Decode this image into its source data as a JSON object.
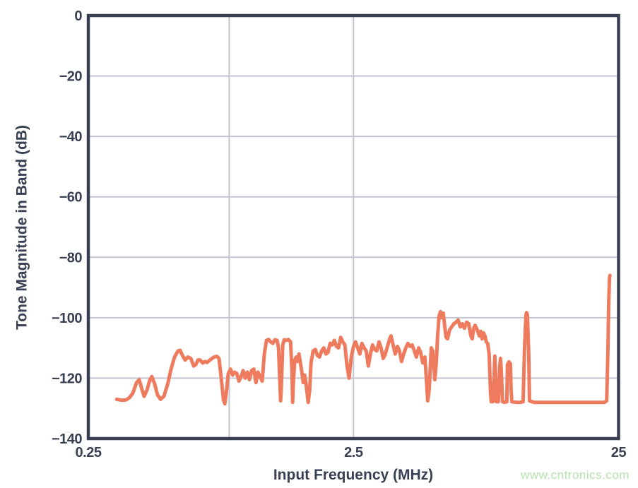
{
  "chart_data": {
    "type": "line",
    "title": "",
    "xlabel": "Input Frequency (MHz)",
    "ylabel": "Tone Magnitude in Band (dB)",
    "xscale": "log",
    "xlim": [
      0.25,
      25
    ],
    "ylim": [
      -140,
      0
    ],
    "grid": true,
    "legend": "none",
    "xticks": [
      {
        "value": 0.25,
        "label": "0.25"
      },
      {
        "value": 2.5,
        "label": "2.5"
      },
      {
        "value": 25,
        "label": "25"
      }
    ],
    "yticks": [
      {
        "value": 0,
        "label": "0"
      },
      {
        "value": -20,
        "label": "−20"
      },
      {
        "value": -40,
        "label": "−40"
      },
      {
        "value": -60,
        "label": "−60"
      },
      {
        "value": -80,
        "label": "−80"
      },
      {
        "value": -100,
        "label": "−100"
      },
      {
        "value": -120,
        "label": "−120"
      },
      {
        "value": -140,
        "label": "−140"
      }
    ],
    "x_gridlines": [
      0.85,
      2.5
    ],
    "y_gridlines": [
      -20,
      -40,
      -60,
      -80,
      -100,
      -120
    ],
    "axis_color": "#3a4054",
    "grid_color": "#c2c5d1",
    "text_color": "#3a4054",
    "series": [
      {
        "color": "#ee7b5e",
        "points": [
          [
            0.32,
            -127
          ],
          [
            0.334,
            -127.3
          ],
          [
            0.347,
            -127.2
          ],
          [
            0.357,
            -126.5
          ],
          [
            0.368,
            -125
          ],
          [
            0.38,
            -121.5
          ],
          [
            0.389,
            -120.5
          ],
          [
            0.396,
            -123
          ],
          [
            0.406,
            -126
          ],
          [
            0.416,
            -124
          ],
          [
            0.427,
            -120.5
          ],
          [
            0.434,
            -119.5
          ],
          [
            0.445,
            -122
          ],
          [
            0.456,
            -125.5
          ],
          [
            0.468,
            -127
          ],
          [
            0.482,
            -126
          ],
          [
            0.498,
            -122
          ],
          [
            0.513,
            -117
          ],
          [
            0.529,
            -113
          ],
          [
            0.545,
            -111
          ],
          [
            0.555,
            -110.8
          ],
          [
            0.566,
            -112.5
          ],
          [
            0.58,
            -114
          ],
          [
            0.594,
            -113
          ],
          [
            0.609,
            -113.5
          ],
          [
            0.624,
            -116
          ],
          [
            0.636,
            -115.5
          ],
          [
            0.648,
            -114
          ],
          [
            0.66,
            -114
          ],
          [
            0.676,
            -115
          ],
          [
            0.689,
            -114.5
          ],
          [
            0.701,
            -114.8
          ],
          [
            0.719,
            -114
          ],
          [
            0.732,
            -113.5
          ],
          [
            0.746,
            -113
          ],
          [
            0.764,
            -112.8
          ],
          [
            0.778,
            -113.5
          ],
          [
            0.793,
            -120
          ],
          [
            0.808,
            -127
          ],
          [
            0.818,
            -128.5
          ],
          [
            0.828,
            -125
          ],
          [
            0.843,
            -118.5
          ],
          [
            0.859,
            -117
          ],
          [
            0.875,
            -119
          ],
          [
            0.891,
            -118
          ],
          [
            0.908,
            -118.5
          ],
          [
            0.925,
            -121
          ],
          [
            0.942,
            -119.5
          ],
          [
            0.959,
            -117.5
          ],
          [
            0.977,
            -120
          ],
          [
            0.995,
            -118
          ],
          [
            1.013,
            -120.5
          ],
          [
            1.033,
            -117.5
          ],
          [
            1.052,
            -117
          ],
          [
            1.072,
            -121.5
          ],
          [
            1.091,
            -118
          ],
          [
            1.112,
            -119.5
          ],
          [
            1.132,
            -121
          ],
          [
            1.153,
            -112
          ],
          [
            1.175,
            -107.5
          ],
          [
            1.197,
            -107.2
          ],
          [
            1.219,
            -108
          ],
          [
            1.242,
            -108.5
          ],
          [
            1.264,
            -107.3
          ],
          [
            1.288,
            -107.5
          ],
          [
            1.304,
            -110
          ],
          [
            1.32,
            -122
          ],
          [
            1.328,
            -127.5
          ],
          [
            1.337,
            -122
          ],
          [
            1.353,
            -109
          ],
          [
            1.37,
            -107.3
          ],
          [
            1.396,
            -107.5
          ],
          [
            1.421,
            -107.2
          ],
          [
            1.448,
            -108
          ],
          [
            1.466,
            -118
          ],
          [
            1.474,
            -128
          ],
          [
            1.483,
            -122
          ],
          [
            1.502,
            -114
          ],
          [
            1.521,
            -113
          ],
          [
            1.539,
            -114.5
          ],
          [
            1.558,
            -112
          ],
          [
            1.577,
            -115
          ],
          [
            1.597,
            -118
          ],
          [
            1.617,
            -121.5
          ],
          [
            1.637,
            -119
          ],
          [
            1.657,
            -122
          ],
          [
            1.677,
            -126
          ],
          [
            1.688,
            -128
          ],
          [
            1.709,
            -124
          ],
          [
            1.73,
            -115
          ],
          [
            1.762,
            -111
          ],
          [
            1.795,
            -110.5
          ],
          [
            1.828,
            -112.5
          ],
          [
            1.862,
            -113
          ],
          [
            1.897,
            -111
          ],
          [
            1.932,
            -110
          ],
          [
            1.968,
            -112
          ],
          [
            2.004,
            -111.5
          ],
          [
            2.041,
            -108.5
          ],
          [
            2.079,
            -109
          ],
          [
            2.118,
            -107.5
          ],
          [
            2.157,
            -109.5
          ],
          [
            2.197,
            -110
          ],
          [
            2.238,
            -106.5
          ],
          [
            2.279,
            -108
          ],
          [
            2.321,
            -109
          ],
          [
            2.365,
            -116
          ],
          [
            2.408,
            -120
          ],
          [
            2.453,
            -113
          ],
          [
            2.5,
            -109.5
          ],
          [
            2.546,
            -108
          ],
          [
            2.594,
            -110
          ],
          [
            2.642,
            -112
          ],
          [
            2.691,
            -108.5
          ],
          [
            2.742,
            -110
          ],
          [
            2.793,
            -111
          ],
          [
            2.845,
            -116
          ],
          [
            2.898,
            -112
          ],
          [
            2.952,
            -109
          ],
          [
            3.007,
            -110.5
          ],
          [
            3.063,
            -111
          ],
          [
            3.121,
            -108
          ],
          [
            3.179,
            -110
          ],
          [
            3.238,
            -113.5
          ],
          [
            3.299,
            -112
          ],
          [
            3.36,
            -109.5
          ],
          [
            3.423,
            -107
          ],
          [
            3.465,
            -106
          ],
          [
            3.529,
            -109
          ],
          [
            3.595,
            -112
          ],
          [
            3.662,
            -109.5
          ],
          [
            3.729,
            -111
          ],
          [
            3.799,
            -114.5
          ],
          [
            3.869,
            -112
          ],
          [
            3.941,
            -110
          ],
          [
            4.014,
            -108.5
          ],
          [
            4.089,
            -109.5
          ],
          [
            4.165,
            -109
          ],
          [
            4.242,
            -111
          ],
          [
            4.321,
            -113
          ],
          [
            4.402,
            -110
          ],
          [
            4.483,
            -111.5
          ],
          [
            4.567,
            -115
          ],
          [
            4.651,
            -113
          ],
          [
            4.709,
            -120
          ],
          [
            4.767,
            -127.5
          ],
          [
            4.826,
            -124
          ],
          [
            4.915,
            -110
          ],
          [
            4.977,
            -111
          ],
          [
            5.069,
            -120.5
          ],
          [
            5.132,
            -115
          ],
          [
            5.195,
            -106
          ],
          [
            5.259,
            -99.5
          ],
          [
            5.324,
            -98
          ],
          [
            5.39,
            -100
          ],
          [
            5.456,
            -98.5
          ],
          [
            5.524,
            -103
          ],
          [
            5.592,
            -106.5
          ],
          [
            5.661,
            -107
          ],
          [
            5.766,
            -104
          ],
          [
            5.873,
            -103
          ],
          [
            5.982,
            -102
          ],
          [
            6.093,
            -101.5
          ],
          [
            6.206,
            -100.8
          ],
          [
            6.321,
            -103
          ],
          [
            6.438,
            -102
          ],
          [
            6.557,
            -103.5
          ],
          [
            6.679,
            -101.5
          ],
          [
            6.803,
            -102
          ],
          [
            6.929,
            -106
          ],
          [
            7.014,
            -107
          ],
          [
            7.101,
            -103.5
          ],
          [
            7.188,
            -102.5
          ],
          [
            7.321,
            -104
          ],
          [
            7.457,
            -106
          ],
          [
            7.549,
            -104.5
          ],
          [
            7.642,
            -107
          ],
          [
            7.736,
            -105
          ],
          [
            7.831,
            -106
          ],
          [
            7.928,
            -108
          ],
          [
            8.025,
            -108.5
          ],
          [
            8.125,
            -112
          ],
          [
            8.225,
            -125
          ],
          [
            8.276,
            -127.8
          ],
          [
            8.378,
            -127.8
          ],
          [
            8.482,
            -120
          ],
          [
            8.534,
            -112.7
          ],
          [
            8.587,
            -118
          ],
          [
            8.64,
            -127.8
          ],
          [
            8.8,
            -127.8
          ],
          [
            8.91,
            -116
          ],
          [
            8.965,
            -113.5
          ],
          [
            9.02,
            -117
          ],
          [
            9.13,
            -127.8
          ],
          [
            9.3,
            -128
          ],
          [
            9.47,
            -127.8
          ],
          [
            9.53,
            -115.5
          ],
          [
            9.65,
            -114.6
          ],
          [
            9.71,
            -118
          ],
          [
            9.77,
            -115.2
          ],
          [
            9.83,
            -124
          ],
          [
            9.89,
            -127.8
          ],
          [
            10.26,
            -128
          ],
          [
            10.65,
            -128
          ],
          [
            10.91,
            -127.8
          ],
          [
            11.05,
            -110
          ],
          [
            11.18,
            -99
          ],
          [
            11.25,
            -98.3
          ],
          [
            11.32,
            -99
          ],
          [
            11.46,
            -112
          ],
          [
            11.53,
            -127.5
          ],
          [
            11.97,
            -128
          ],
          [
            12.73,
            -128
          ],
          [
            13.54,
            -128
          ],
          [
            14.39,
            -128
          ],
          [
            15.31,
            -128
          ],
          [
            16.28,
            -128
          ],
          [
            17.3,
            -128
          ],
          [
            18.4,
            -128
          ],
          [
            19.57,
            -128
          ],
          [
            20.8,
            -128
          ],
          [
            22.13,
            -128
          ],
          [
            22.55,
            -127.5
          ],
          [
            22.8,
            -110
          ],
          [
            22.96,
            -95
          ],
          [
            23.1,
            -87
          ],
          [
            23.2,
            -86
          ]
        ]
      }
    ]
  },
  "watermark": {
    "text": "www.cntronics.com",
    "color": "#b5e3ae"
  }
}
